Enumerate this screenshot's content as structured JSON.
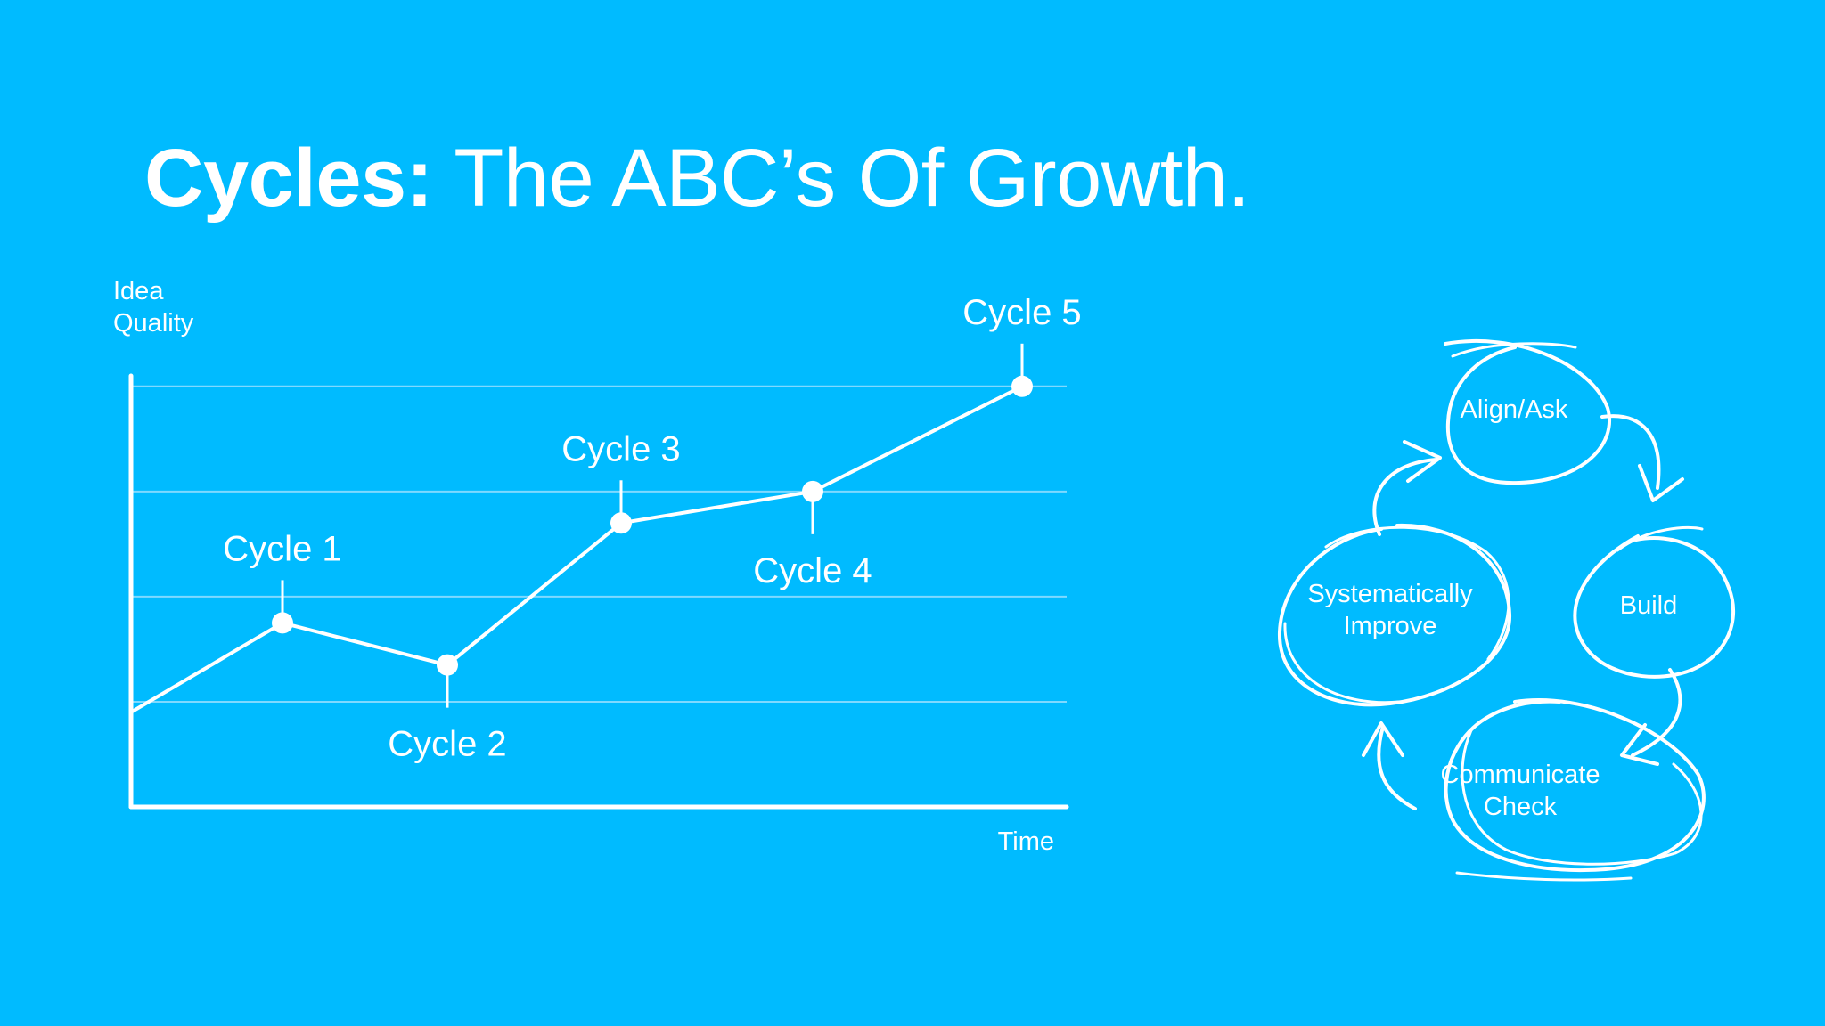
{
  "slide": {
    "title_bold": "Cycles:",
    "title_rest": " The ABC’s Of Growth."
  },
  "chart_data": {
    "type": "line",
    "ylabel_lines": [
      "Idea",
      "Quality"
    ],
    "xlabel": "Time",
    "grid": true,
    "gridlines_y": [
      1,
      2,
      3,
      4
    ],
    "ylim": [
      0,
      4.1
    ],
    "xlim": [
      0,
      10.5
    ],
    "series": [
      {
        "x": [
          0,
          1.7,
          3.55,
          5.5,
          7.65,
          10.0
        ],
        "values": [
          0.9,
          1.75,
          1.35,
          2.7,
          3.0,
          4.0
        ]
      }
    ],
    "points": [
      {
        "label": "Cycle 1",
        "index": 1,
        "position": "above"
      },
      {
        "label": "Cycle 2",
        "index": 2,
        "position": "below"
      },
      {
        "label": "Cycle 3",
        "index": 3,
        "position": "above"
      },
      {
        "label": "Cycle 4",
        "index": 4,
        "position": "below"
      },
      {
        "label": "Cycle 5",
        "index": 5,
        "position": "above"
      }
    ],
    "colors": {
      "background": "#00BBFF",
      "line": "#ffffff",
      "grid": "#7fd9ff"
    }
  },
  "cycle_diagram": {
    "nodes": [
      {
        "key": "align",
        "lines": [
          "Align/Ask"
        ]
      },
      {
        "key": "build",
        "lines": [
          "Build"
        ]
      },
      {
        "key": "communicate",
        "lines": [
          "Communicate",
          "Check"
        ]
      },
      {
        "key": "improve",
        "lines": [
          "Systematically",
          "Improve"
        ]
      }
    ]
  }
}
